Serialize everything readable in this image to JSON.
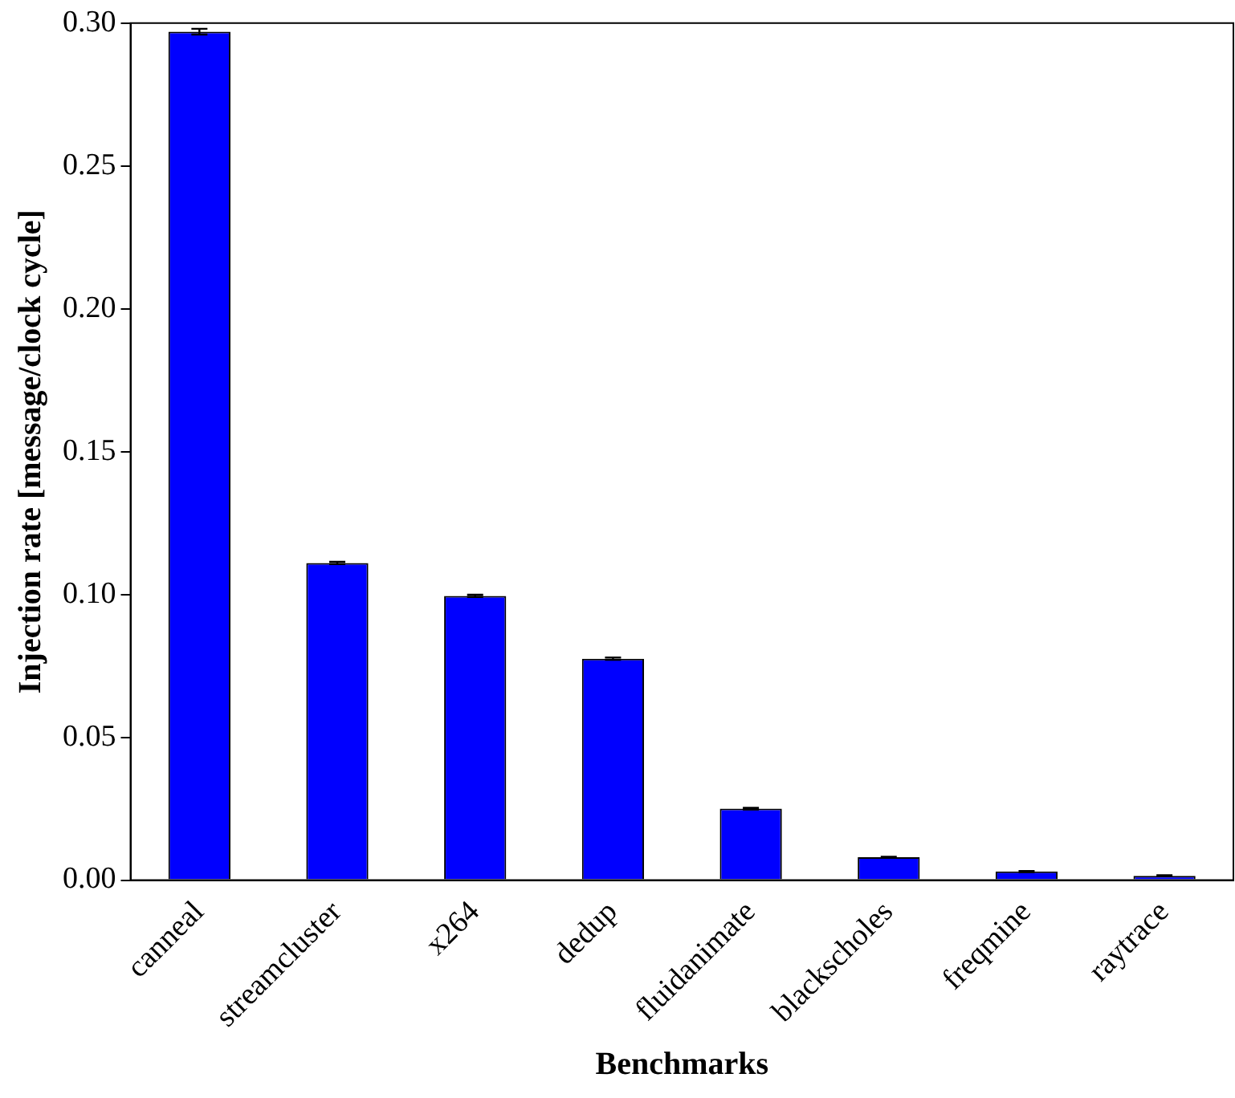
{
  "chart_data": {
    "type": "bar",
    "xlabel": "Benchmarks",
    "ylabel": "Injection rate [message/clock cycle]",
    "categories": [
      "canneal",
      "streamcluster",
      "x264",
      "dedup",
      "fluidanimate",
      "blackscholes",
      "freqmine",
      "raytrace"
    ],
    "values": [
      0.297,
      0.111,
      0.0995,
      0.0775,
      0.025,
      0.008,
      0.003,
      0.0015
    ],
    "errors": [
      0.001,
      0.0004,
      0.0004,
      0.0004,
      0.0003,
      0.0002,
      0.0002,
      0.0002
    ],
    "color": "#0000ff",
    "ylim": [
      0,
      0.3
    ],
    "yticks": [
      {
        "value": 0,
        "label": "0.00"
      },
      {
        "value": 0.05,
        "label": "0.05"
      },
      {
        "value": 0.1,
        "label": "0.10"
      },
      {
        "value": 0.15,
        "label": "0.15"
      },
      {
        "value": 0.2,
        "label": "0.20"
      },
      {
        "value": 0.25,
        "label": "0.25"
      },
      {
        "value": 0.3,
        "label": "0.30"
      }
    ],
    "grid": false,
    "legend": false
  }
}
